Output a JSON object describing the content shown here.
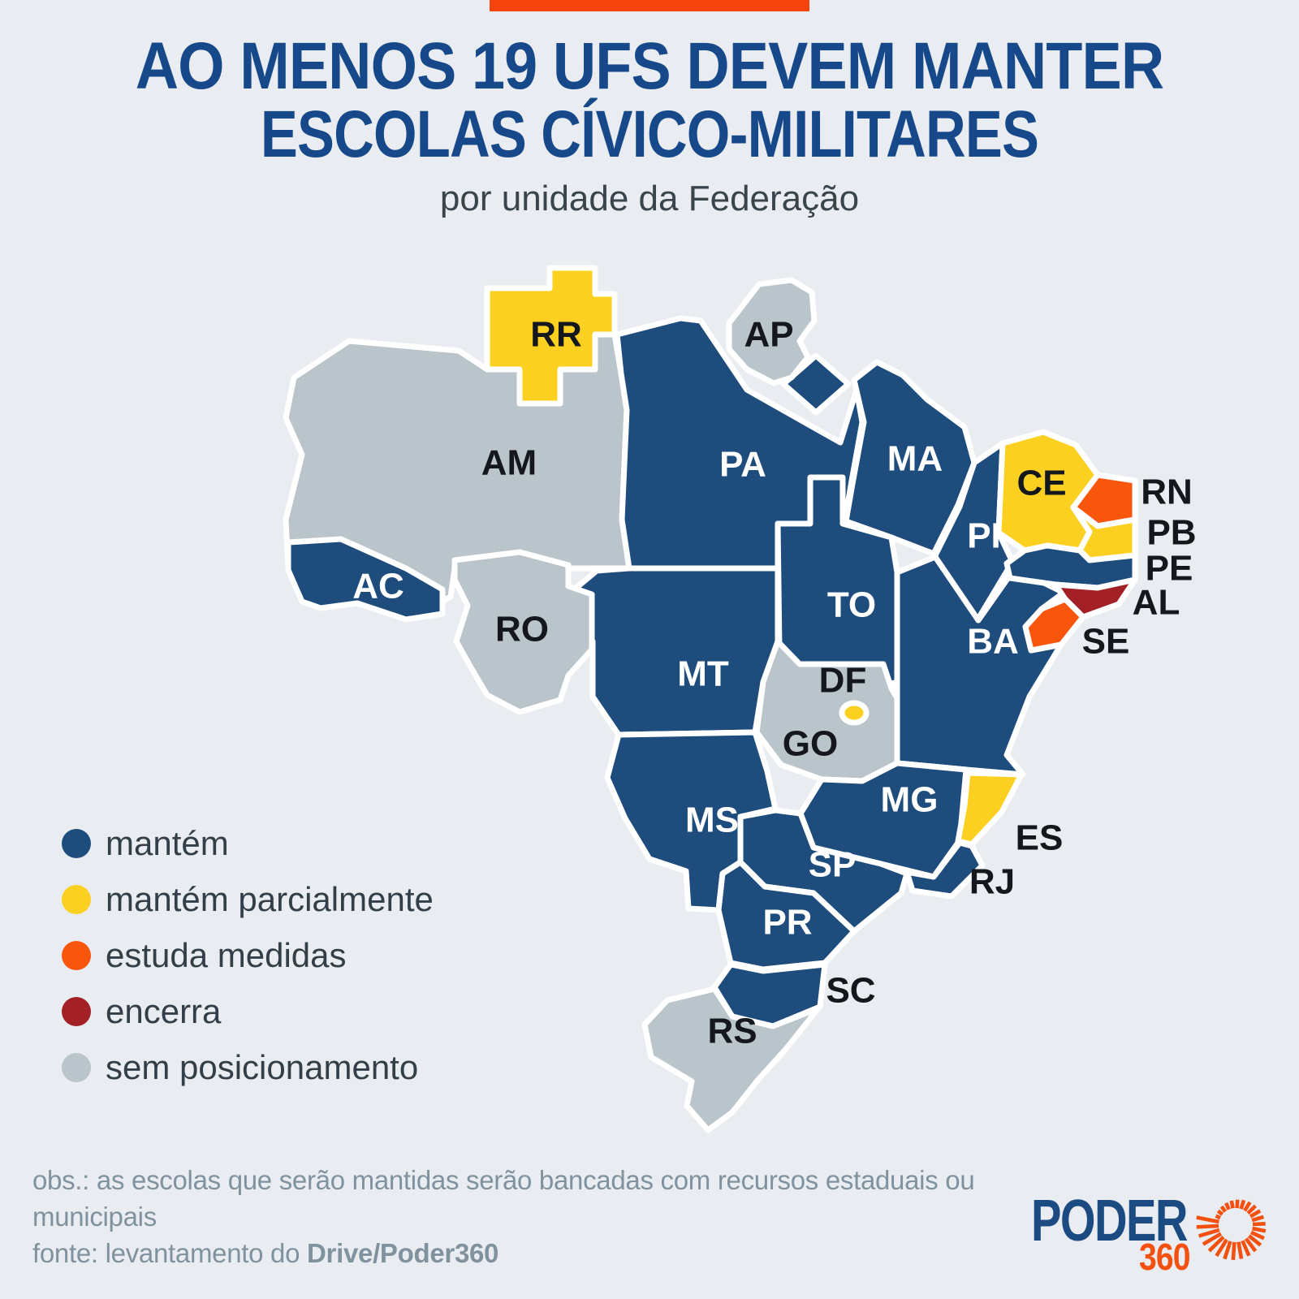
{
  "page": {
    "background_color": "#e9edf1",
    "accent_bar_color": "#f5430e"
  },
  "header": {
    "title_line1": "AO MENOS 19 UFS DEVEM MANTER",
    "title_line2": "ESCOLAS CÍVICO-MILITARES",
    "subtitle": "por unidade da Federação",
    "title_color": "#17498a"
  },
  "legend": {
    "items": [
      {
        "status": "mantem",
        "label": "mantém",
        "color": "#1e4c7d"
      },
      {
        "status": "mantem_parcialmente",
        "label": "mantém parcialmente",
        "color": "#fcd021"
      },
      {
        "status": "estuda_medidas",
        "label": "estuda medidas",
        "color": "#f8560d"
      },
      {
        "status": "encerra",
        "label": "encerra",
        "color": "#a32126"
      },
      {
        "status": "sem_posicionamento",
        "label": "sem posicionamento",
        "color": "#bac4cb"
      }
    ]
  },
  "map": {
    "stroke_color": "#ffffff",
    "label_colors": {
      "dark": "#14181c",
      "light": "#ffffff"
    },
    "status_colors": {
      "mantem": "#1e4c7d",
      "mantem_parcialmente": "#fcd021",
      "estuda_medidas": "#f8560d",
      "encerra": "#a32126",
      "sem_posicionamento": "#bac4cb"
    },
    "states": [
      {
        "code": "RR",
        "status": "mantem_parcialmente"
      },
      {
        "code": "AP",
        "status": "sem_posicionamento"
      },
      {
        "code": "AM",
        "status": "sem_posicionamento"
      },
      {
        "code": "PA",
        "status": "mantem"
      },
      {
        "code": "MA",
        "status": "mantem"
      },
      {
        "code": "CE",
        "status": "mantem_parcialmente"
      },
      {
        "code": "RN",
        "status": "estuda_medidas"
      },
      {
        "code": "PB",
        "status": "mantem_parcialmente"
      },
      {
        "code": "PE",
        "status": "mantem"
      },
      {
        "code": "AL",
        "status": "encerra"
      },
      {
        "code": "SE",
        "status": "estuda_medidas"
      },
      {
        "code": "PI",
        "status": "mantem"
      },
      {
        "code": "TO",
        "status": "mantem"
      },
      {
        "code": "BA",
        "status": "mantem"
      },
      {
        "code": "AC",
        "status": "mantem"
      },
      {
        "code": "RO",
        "status": "sem_posicionamento"
      },
      {
        "code": "MT",
        "status": "mantem"
      },
      {
        "code": "DF",
        "status": "mantem_parcialmente"
      },
      {
        "code": "GO",
        "status": "sem_posicionamento"
      },
      {
        "code": "MG",
        "status": "mantem"
      },
      {
        "code": "ES",
        "status": "mantem_parcialmente"
      },
      {
        "code": "RJ",
        "status": "mantem"
      },
      {
        "code": "SP",
        "status": "mantem"
      },
      {
        "code": "MS",
        "status": "mantem"
      },
      {
        "code": "PR",
        "status": "mantem"
      },
      {
        "code": "SC",
        "status": "mantem"
      },
      {
        "code": "RS",
        "status": "sem_posicionamento"
      }
    ]
  },
  "footer": {
    "note_line1": "obs.: as escolas que serão mantidas serão bancadas com recursos estaduais ou",
    "note_line2": "municipais",
    "source_prefix": "fonte: levantamento do ",
    "source_bold": "Drive/Poder360",
    "logo": {
      "word": "PODER",
      "number": "360",
      "navy_color": "#1c4b82",
      "orange_color": "#f4500f"
    }
  }
}
